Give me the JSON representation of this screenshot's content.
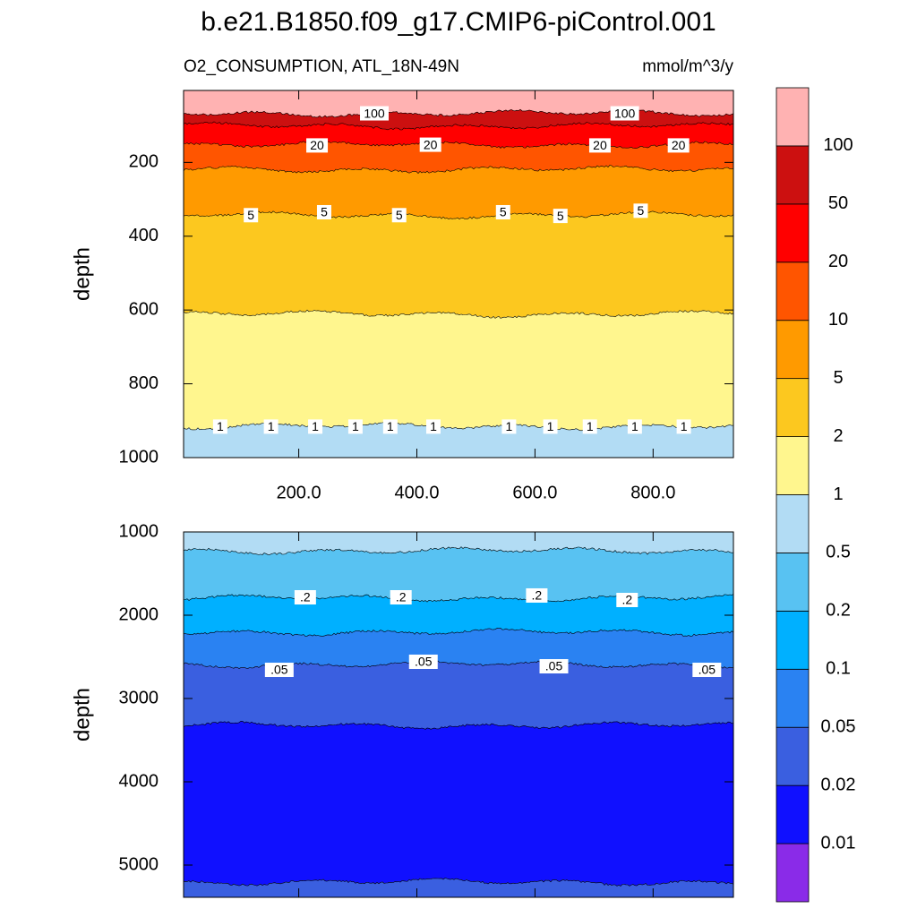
{
  "chart_data": {
    "type": "contour",
    "title": "b.e21.B1850.f09_g17.CMIP6-piControl.001",
    "subtitle_left": "O2_CONSUMPTION, ATL_18N-49N",
    "subtitle_right": "mmol/m^3/y",
    "colorbar": {
      "levels": [
        0.01,
        0.02,
        0.05,
        0.1,
        0.2,
        0.5,
        1,
        2,
        5,
        10,
        20,
        50,
        100
      ],
      "colors": [
        "#8a2be8",
        "#1010ff",
        "#3a5fe0",
        "#2a82f2",
        "#00b0ff",
        "#58c2f2",
        "#b2dcf4",
        "#fff68e",
        "#fcc81f",
        "#ff9a00",
        "#ff5500",
        "#ff0000",
        "#cc1010",
        "#ffb2b2"
      ]
    },
    "panels": [
      {
        "ylabel": "depth",
        "xlim": [
          5,
          936
        ],
        "ylim": [
          5,
          1000
        ],
        "xticks": [
          {
            "value": 200,
            "label": "200.0"
          },
          {
            "value": 400,
            "label": "400.0"
          },
          {
            "value": 600,
            "label": "600.0"
          },
          {
            "value": 800,
            "label": "800.0"
          }
        ],
        "yticks": [
          200,
          400,
          600,
          800,
          1000
        ],
        "bands": [
          {
            "top": 5,
            "bottom": 67,
            "color": "#ffb2b2"
          },
          {
            "top": 67,
            "bottom": 101,
            "color": "#cc1010"
          },
          {
            "top": 101,
            "bottom": 152,
            "color": "#ff0000"
          },
          {
            "top": 152,
            "bottom": 219,
            "color": "#ff5500"
          },
          {
            "top": 219,
            "bottom": 343,
            "color": "#ff9a00"
          },
          {
            "top": 343,
            "bottom": 611,
            "color": "#fcc81f"
          },
          {
            "top": 611,
            "bottom": 915,
            "color": "#fff68e"
          },
          {
            "top": 915,
            "bottom": 1000,
            "color": "#b2dcf4"
          }
        ],
        "contour_labels": [
          {
            "text": "100",
            "x": 328,
            "depth": 67
          },
          {
            "text": "100",
            "x": 752,
            "depth": 67
          },
          {
            "text": "20",
            "x": 231,
            "depth": 154
          },
          {
            "text": "20",
            "x": 423,
            "depth": 152
          },
          {
            "text": "20",
            "x": 710,
            "depth": 154
          },
          {
            "text": "20",
            "x": 843,
            "depth": 154
          },
          {
            "text": "5",
            "x": 119,
            "depth": 343
          },
          {
            "text": "5",
            "x": 243,
            "depth": 335
          },
          {
            "text": "5",
            "x": 370,
            "depth": 343
          },
          {
            "text": "5",
            "x": 546,
            "depth": 335
          },
          {
            "text": "5",
            "x": 643,
            "depth": 345
          },
          {
            "text": "5",
            "x": 779,
            "depth": 331
          },
          {
            "text": "1",
            "x": 67,
            "depth": 916
          },
          {
            "text": "1",
            "x": 153,
            "depth": 916
          },
          {
            "text": "1",
            "x": 228,
            "depth": 916
          },
          {
            "text": "1",
            "x": 296,
            "depth": 916
          },
          {
            "text": "1",
            "x": 355,
            "depth": 916
          },
          {
            "text": "1",
            "x": 428,
            "depth": 916
          },
          {
            "text": "1",
            "x": 556,
            "depth": 916
          },
          {
            "text": "1",
            "x": 626,
            "depth": 916
          },
          {
            "text": "1",
            "x": 693,
            "depth": 916
          },
          {
            "text": "1",
            "x": 769,
            "depth": 916
          },
          {
            "text": "1",
            "x": 852,
            "depth": 916
          }
        ]
      },
      {
        "ylabel": "depth",
        "xlim": [
          5,
          936
        ],
        "ylim": [
          1000,
          5387
        ],
        "xticks": [
          200,
          400,
          600,
          800
        ],
        "xtick_labels": false,
        "yticks": [
          1000,
          2000,
          3000,
          4000,
          5000
        ],
        "bands": [
          {
            "top": 1000,
            "bottom": 1226,
            "color": "#b2dcf4"
          },
          {
            "top": 1226,
            "bottom": 1796,
            "color": "#58c2f2"
          },
          {
            "top": 1796,
            "bottom": 2204,
            "color": "#00b0ff"
          },
          {
            "top": 2204,
            "bottom": 2591,
            "color": "#2a82f2"
          },
          {
            "top": 2591,
            "bottom": 3323,
            "color": "#3a5fe0"
          },
          {
            "top": 3323,
            "bottom": 5204,
            "color": "#1010ff"
          },
          {
            "top": 5204,
            "bottom": 5387,
            "color": "#3a5fe0"
          }
        ],
        "contour_labels": [
          {
            "text": ".2",
            "x": 211,
            "depth": 1785
          },
          {
            "text": ".2",
            "x": 373,
            "depth": 1785
          },
          {
            "text": ".2",
            "x": 603,
            "depth": 1763
          },
          {
            "text": ".2",
            "x": 756,
            "depth": 1817
          },
          {
            "text": ".05",
            "x": 167,
            "depth": 2656
          },
          {
            "text": ".05",
            "x": 411,
            "depth": 2559
          },
          {
            "text": ".05",
            "x": 632,
            "depth": 2613
          },
          {
            "text": ".05",
            "x": 891,
            "depth": 2656
          }
        ]
      }
    ]
  }
}
